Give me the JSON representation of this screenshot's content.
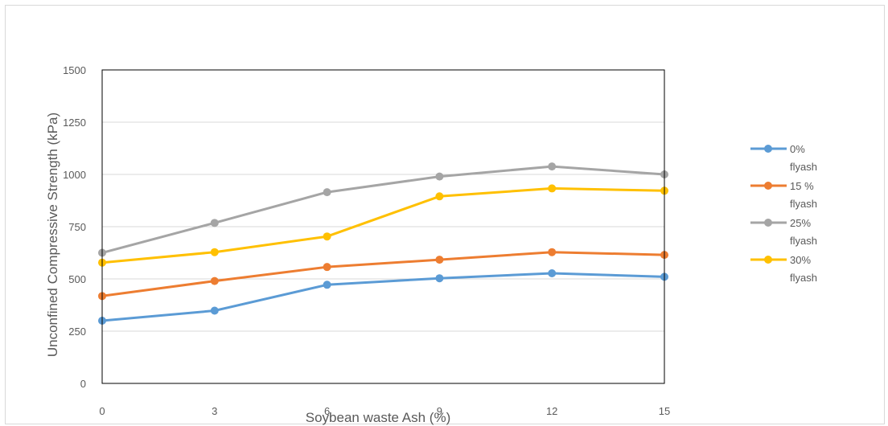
{
  "chart_data": {
    "type": "line",
    "title": "",
    "xlabel": "Soybean waste Ash (%)",
    "ylabel": "Unconfined Compressive Strength (kPa)",
    "x": [
      0,
      3,
      6,
      9,
      12,
      15
    ],
    "x_tick_labels": [
      "0",
      "3",
      "6",
      "9",
      "12",
      "15"
    ],
    "ylim": [
      0,
      1500
    ],
    "y_ticks": [
      0,
      250,
      500,
      750,
      1000,
      1250,
      1500
    ],
    "y_tick_labels": [
      "0",
      "250",
      "500",
      "750",
      "1000",
      "1250",
      "1500"
    ],
    "grid": true,
    "legend_position": "right",
    "series": [
      {
        "name": "0% flyash",
        "color": "#5b9bd5",
        "values": [
          300,
          348,
          472,
          503,
          527,
          510
        ]
      },
      {
        "name": "15 % flyash",
        "color": "#ed7d31",
        "values": [
          418,
          490,
          557,
          592,
          628,
          615
        ]
      },
      {
        "name": "25% flyash",
        "color": "#a5a5a5",
        "values": [
          625,
          768,
          915,
          990,
          1038,
          1000
        ]
      },
      {
        "name": "30% flyash",
        "color": "#ffc000",
        "values": [
          578,
          628,
          703,
          895,
          933,
          922
        ]
      }
    ]
  }
}
